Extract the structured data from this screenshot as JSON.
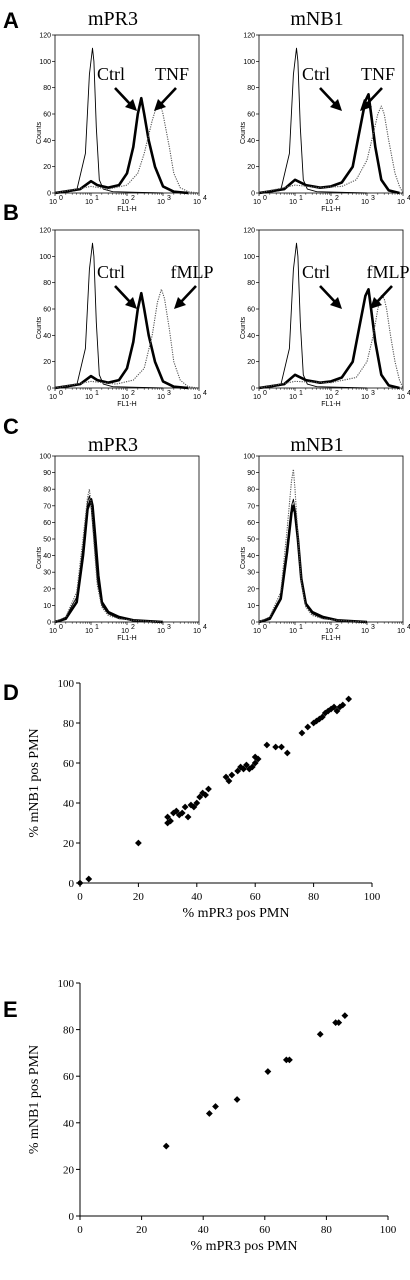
{
  "colors": {
    "ink": "#000000",
    "background": "#ffffff",
    "dotted": "#555555"
  },
  "histogram_axis": {
    "x_label": "FL1-H",
    "y_label": "Counts",
    "x_tick_labels": [
      "10",
      "10",
      "10",
      "10",
      "10"
    ],
    "x_tick_exponents": [
      "0",
      "1",
      "2",
      "3",
      "4"
    ]
  },
  "panels": [
    {
      "id": "A",
      "letter": "A",
      "charts": [
        {
          "title": "mPR3",
          "ctrl_label": "Ctrl",
          "stim_label": "TNF",
          "y_ticks": [
            "0",
            "20",
            "40",
            "60",
            "80",
            "100",
            "120"
          ],
          "ymax": 120
        },
        {
          "title": "mNB1",
          "ctrl_label": "Ctrl",
          "stim_label": "TNF",
          "y_ticks": [
            "0",
            "20",
            "40",
            "60",
            "80",
            "100",
            "120"
          ],
          "ymax": 120
        }
      ]
    },
    {
      "id": "B",
      "letter": "B",
      "charts": [
        {
          "title": "",
          "ctrl_label": "Ctrl",
          "stim_label": "fMLP",
          "y_ticks": [
            "0",
            "20",
            "40",
            "60",
            "80",
            "100",
            "120"
          ],
          "ymax": 120
        },
        {
          "title": "",
          "ctrl_label": "Ctrl",
          "stim_label": "fMLP",
          "y_ticks": [
            "0",
            "20",
            "40",
            "60",
            "80",
            "100",
            "120"
          ],
          "ymax": 120
        }
      ]
    },
    {
      "id": "C",
      "letter": "C",
      "charts": [
        {
          "title": "mPR3",
          "ctrl_label": "",
          "stim_label": "",
          "y_ticks": [
            "0",
            "10",
            "20",
            "30",
            "40",
            "50",
            "60",
            "70",
            "80",
            "90",
            "100"
          ],
          "ymax": 100
        },
        {
          "title": "mNB1",
          "ctrl_label": "",
          "stim_label": "",
          "y_ticks": [
            "0",
            "10",
            "20",
            "30",
            "40",
            "50",
            "60",
            "70",
            "80",
            "90",
            "100"
          ],
          "ymax": 100
        }
      ]
    }
  ],
  "chart_data": [
    {
      "panel": "A",
      "type": "line",
      "title": "mPR3",
      "xlabel": "FL1-H",
      "ylabel": "Counts",
      "x_scale": "log",
      "xlim": [
        1,
        10000
      ],
      "ylim": [
        0,
        120
      ],
      "series": [
        {
          "name": "",
          "style": "thin",
          "x": [
            1.5,
            4,
            7,
            9,
            11,
            12,
            14,
            17,
            22,
            40,
            1000
          ],
          "values": [
            0,
            2,
            30,
            90,
            110,
            100,
            50,
            10,
            3,
            1,
            0
          ]
        },
        {
          "name": "Ctrl",
          "style": "bold",
          "x": [
            1,
            5,
            10,
            15,
            30,
            60,
            100,
            150,
            200,
            250,
            300,
            400,
            600,
            1000,
            2000,
            5000
          ],
          "values": [
            0,
            3,
            9,
            6,
            4,
            6,
            15,
            35,
            60,
            72,
            60,
            40,
            20,
            5,
            1,
            0
          ]
        },
        {
          "name": "TNF",
          "style": "dotted",
          "x": [
            1,
            10,
            30,
            100,
            200,
            300,
            500,
            700,
            800,
            1000,
            1500,
            2000,
            3000,
            5000,
            10000
          ],
          "values": [
            0,
            5,
            3,
            6,
            15,
            30,
            55,
            68,
            70,
            60,
            35,
            15,
            4,
            1,
            0
          ]
        }
      ]
    },
    {
      "panel": "A",
      "type": "line",
      "title": "mNB1",
      "xlabel": "FL1-H",
      "ylabel": "Counts",
      "x_scale": "log",
      "xlim": [
        1,
        10000
      ],
      "ylim": [
        0,
        120
      ],
      "series": [
        {
          "name": "",
          "style": "thin",
          "x": [
            1.5,
            4,
            7,
            9,
            11,
            12,
            14,
            17,
            22,
            40,
            1000
          ],
          "values": [
            0,
            2,
            30,
            90,
            110,
            100,
            50,
            10,
            3,
            1,
            0
          ]
        },
        {
          "name": "Ctrl",
          "style": "bold",
          "x": [
            1,
            5,
            10,
            20,
            50,
            100,
            200,
            400,
            600,
            900,
            1100,
            1300,
            1700,
            2500,
            4000,
            8000
          ],
          "values": [
            0,
            3,
            10,
            6,
            4,
            5,
            8,
            20,
            45,
            70,
            75,
            60,
            35,
            10,
            2,
            0
          ]
        },
        {
          "name": "TNF",
          "style": "dotted",
          "x": [
            1,
            10,
            50,
            200,
            500,
            1000,
            1500,
            2000,
            2500,
            3000,
            4000,
            6000,
            8000,
            10000
          ],
          "values": [
            0,
            6,
            4,
            5,
            10,
            25,
            45,
            60,
            66,
            60,
            40,
            15,
            5,
            0
          ]
        }
      ]
    },
    {
      "panel": "B",
      "type": "line",
      "title": "",
      "xlabel": "FL1-H",
      "ylabel": "Counts",
      "x_scale": "log",
      "xlim": [
        1,
        10000
      ],
      "ylim": [
        0,
        120
      ],
      "series": [
        {
          "name": "",
          "style": "thin",
          "x": [
            1.5,
            4,
            7,
            9,
            11,
            12,
            14,
            17,
            22,
            40,
            1000
          ],
          "values": [
            0,
            2,
            30,
            90,
            110,
            100,
            50,
            10,
            3,
            1,
            0
          ]
        },
        {
          "name": "Ctrl",
          "style": "bold",
          "x": [
            1,
            5,
            10,
            15,
            30,
            60,
            100,
            150,
            200,
            250,
            300,
            400,
            600,
            1000,
            2000,
            5000
          ],
          "values": [
            0,
            3,
            9,
            6,
            4,
            6,
            15,
            35,
            60,
            72,
            60,
            40,
            20,
            5,
            1,
            0
          ]
        },
        {
          "name": "fMLP",
          "style": "dotted",
          "x": [
            1,
            10,
            50,
            150,
            300,
            500,
            700,
            900,
            1100,
            1500,
            2000,
            3000,
            5000,
            10000
          ],
          "values": [
            0,
            5,
            3,
            6,
            15,
            40,
            65,
            75,
            68,
            45,
            20,
            6,
            1,
            0
          ]
        }
      ]
    },
    {
      "panel": "B",
      "type": "line",
      "title": "",
      "xlabel": "FL1-H",
      "ylabel": "Counts",
      "x_scale": "log",
      "xlim": [
        1,
        10000
      ],
      "ylim": [
        0,
        120
      ],
      "series": [
        {
          "name": "",
          "style": "thin",
          "x": [
            1.5,
            4,
            7,
            9,
            11,
            12,
            14,
            17,
            22,
            40,
            1000
          ],
          "values": [
            0,
            2,
            30,
            90,
            110,
            100,
            50,
            10,
            3,
            1,
            0
          ]
        },
        {
          "name": "Ctrl",
          "style": "bold",
          "x": [
            1,
            5,
            10,
            20,
            50,
            100,
            200,
            400,
            600,
            900,
            1100,
            1300,
            1700,
            2500,
            4000,
            8000
          ],
          "values": [
            0,
            3,
            10,
            6,
            4,
            5,
            8,
            20,
            45,
            70,
            75,
            60,
            35,
            10,
            2,
            0
          ]
        },
        {
          "name": "fMLP",
          "style": "dotted",
          "x": [
            1,
            10,
            100,
            500,
            1000,
            1500,
            2000,
            2500,
            3000,
            3500,
            4500,
            6000,
            8000,
            10000
          ],
          "values": [
            0,
            5,
            4,
            8,
            20,
            40,
            60,
            70,
            68,
            60,
            40,
            20,
            6,
            0
          ]
        }
      ]
    },
    {
      "panel": "C",
      "type": "line",
      "title": "mPR3",
      "xlabel": "FL1-H",
      "ylabel": "Counts",
      "x_scale": "log",
      "xlim": [
        1,
        10000
      ],
      "ylim": [
        0,
        100
      ],
      "series": [
        {
          "name": "",
          "style": "thin",
          "x": [
            1,
            2,
            4,
            6,
            8,
            9,
            10,
            12,
            15,
            20,
            30,
            60,
            150,
            1000
          ],
          "values": [
            0,
            3,
            15,
            45,
            72,
            76,
            70,
            50,
            25,
            10,
            5,
            2,
            1,
            0
          ]
        },
        {
          "name": "",
          "style": "bold",
          "x": [
            1,
            2,
            4,
            6,
            8,
            10,
            11,
            13,
            16,
            20,
            30,
            60,
            150,
            1000
          ],
          "values": [
            0,
            2,
            12,
            40,
            68,
            74,
            70,
            52,
            28,
            12,
            6,
            3,
            1,
            0
          ]
        },
        {
          "name": "",
          "style": "dotted",
          "x": [
            1,
            2,
            4,
            6,
            8,
            9,
            10,
            12,
            15,
            20,
            30,
            60,
            150,
            1000
          ],
          "values": [
            0,
            3,
            18,
            50,
            75,
            80,
            72,
            48,
            22,
            9,
            4,
            2,
            1,
            0
          ]
        }
      ]
    },
    {
      "panel": "C",
      "type": "line",
      "title": "mNB1",
      "xlabel": "FL1-H",
      "ylabel": "Counts",
      "x_scale": "log",
      "xlim": [
        1,
        10000
      ],
      "ylim": [
        0,
        100
      ],
      "series": [
        {
          "name": "",
          "style": "thin",
          "x": [
            1,
            2,
            4,
            6,
            8,
            9,
            10,
            12,
            15,
            20,
            30,
            60,
            150,
            1000
          ],
          "values": [
            0,
            3,
            15,
            45,
            70,
            74,
            68,
            48,
            24,
            10,
            5,
            2,
            1,
            0
          ]
        },
        {
          "name": "",
          "style": "bold",
          "x": [
            1,
            2,
            4,
            6,
            8,
            9,
            10,
            12,
            15,
            20,
            30,
            60,
            150,
            1000
          ],
          "values": [
            0,
            2,
            14,
            42,
            66,
            70,
            66,
            50,
            26,
            11,
            6,
            3,
            1,
            0
          ]
        },
        {
          "name": "",
          "style": "dotted",
          "x": [
            1,
            2,
            4,
            6,
            8,
            9,
            10,
            12,
            15,
            20,
            30,
            60,
            150,
            1000
          ],
          "values": [
            0,
            3,
            18,
            55,
            85,
            92,
            80,
            52,
            24,
            9,
            4,
            2,
            1,
            0
          ]
        }
      ]
    },
    {
      "panel": "D",
      "type": "scatter",
      "title": "",
      "xlabel": "%  mPR3 pos PMN",
      "ylabel": "%  mNB1 pos PMN",
      "xlim": [
        0,
        100
      ],
      "ylim": [
        0,
        100
      ],
      "x_ticks": [
        "0",
        "20",
        "40",
        "60",
        "80",
        "100"
      ],
      "y_ticks": [
        "0",
        "20",
        "40",
        "60",
        "80",
        "100"
      ],
      "x": [
        0,
        3,
        20,
        30,
        30,
        31,
        32,
        33,
        34,
        35,
        36,
        37,
        38,
        39,
        40,
        41,
        42,
        43,
        44,
        50,
        51,
        52,
        54,
        55,
        56,
        57,
        58,
        59,
        60,
        60,
        61,
        64,
        67,
        69,
        71,
        76,
        78,
        80,
        81,
        82,
        83,
        84,
        85,
        86,
        87,
        88,
        89,
        90,
        92
      ],
      "y": [
        0,
        2,
        20,
        30,
        33,
        31,
        35,
        36,
        34,
        35,
        38,
        33,
        39,
        38,
        40,
        43,
        45,
        44,
        47,
        53,
        51,
        54,
        56,
        58,
        57,
        59,
        57,
        58,
        60,
        63,
        62,
        69,
        68,
        68,
        65,
        75,
        78,
        80,
        81,
        82,
        83,
        85,
        86,
        87,
        88,
        86,
        88,
        89,
        92
      ]
    },
    {
      "panel": "E",
      "type": "scatter",
      "title": "",
      "xlabel": "%  mPR3 pos PMN",
      "ylabel": "%  mNB1 pos PMN",
      "xlim": [
        0,
        100
      ],
      "ylim": [
        0,
        100
      ],
      "x_ticks": [
        "0",
        "20",
        "40",
        "60",
        "80",
        "100"
      ],
      "y_ticks": [
        "0",
        "20",
        "40",
        "60",
        "80",
        "100"
      ],
      "x": [
        28,
        42,
        44,
        51,
        61,
        67,
        68,
        78,
        83,
        84,
        86
      ],
      "y": [
        30,
        44,
        47,
        50,
        62,
        67,
        67,
        78,
        83,
        83,
        86
      ]
    }
  ],
  "scatter_panels": [
    {
      "id": "D",
      "letter": "D"
    },
    {
      "id": "E",
      "letter": "E"
    }
  ]
}
